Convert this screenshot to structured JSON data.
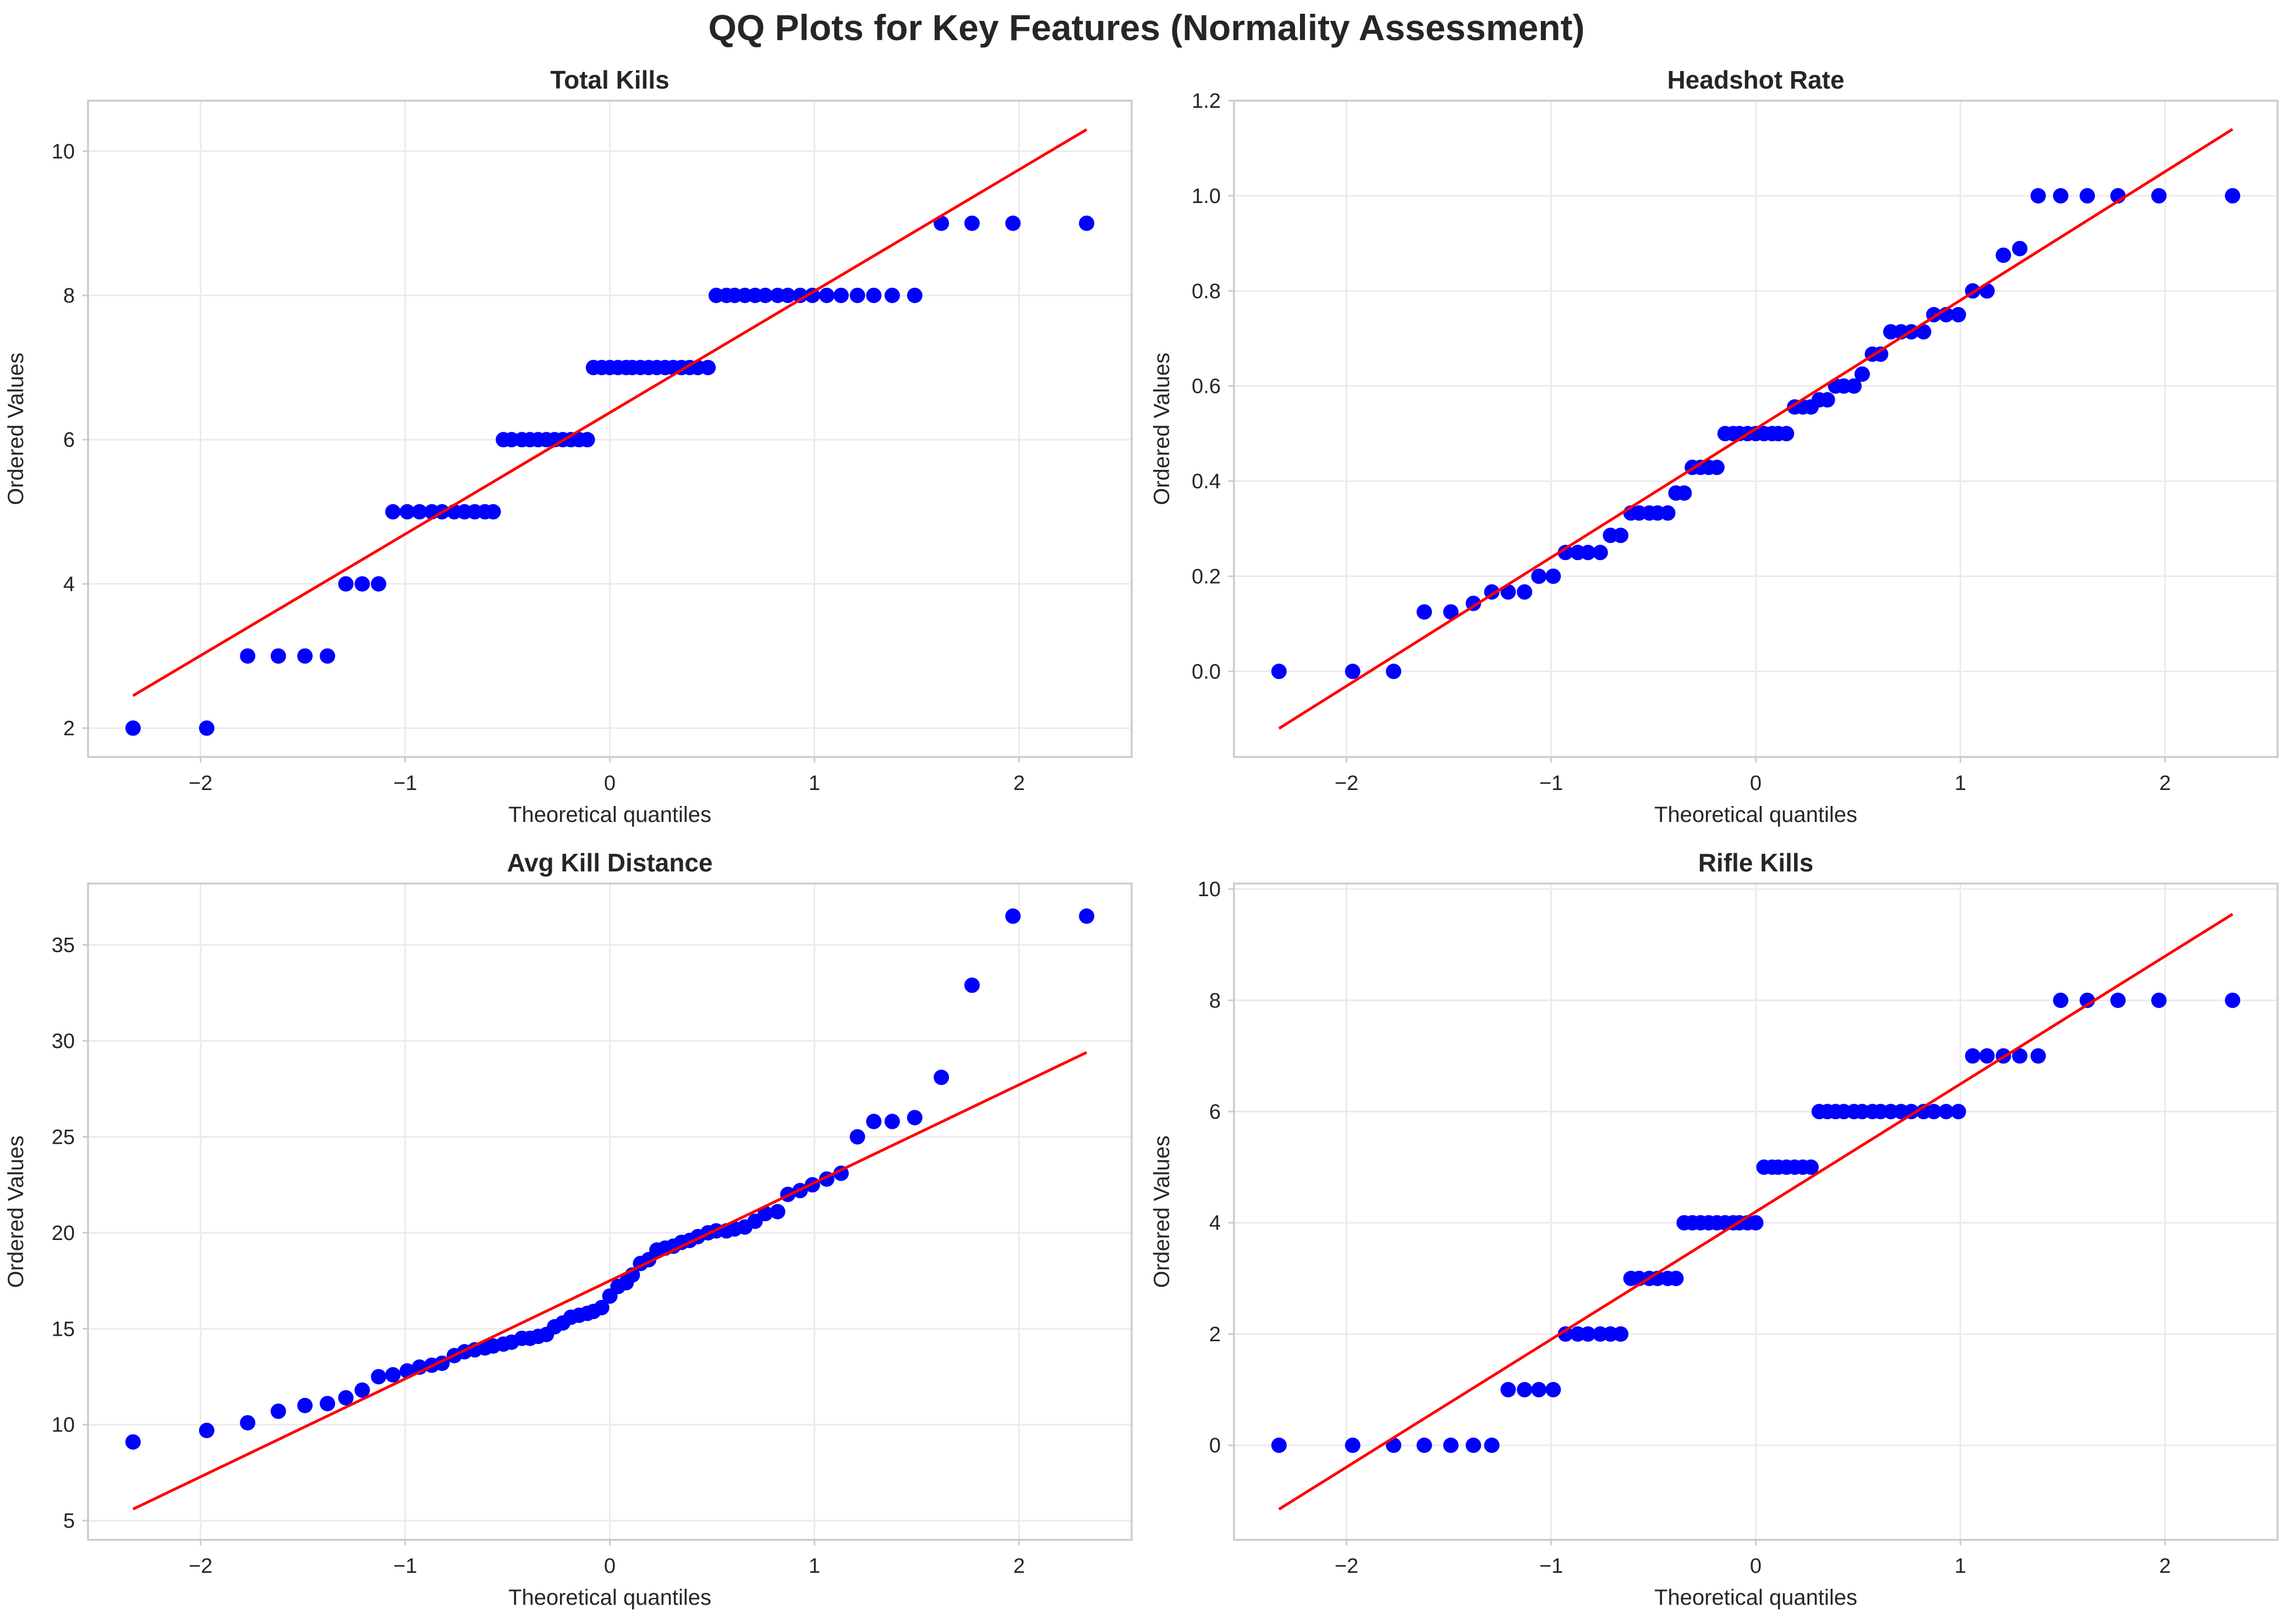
{
  "figure": {
    "suptitle": "QQ Plots for Key Features (Normality Assessment)"
  },
  "chart_data": [
    {
      "type": "scatter",
      "title": "Total Kills",
      "xlabel": "Theoretical quantiles",
      "ylabel": "Ordered Values",
      "xlim": [
        -2.55,
        2.55
      ],
      "ylim": [
        1.6,
        10.7
      ],
      "xticks": [
        -2,
        -1,
        0,
        1,
        2
      ],
      "yticks": [
        2,
        4,
        6,
        8,
        10
      ],
      "grid": true,
      "fit_line": {
        "x": [
          -2.33,
          2.33
        ],
        "y": [
          2.45,
          10.3
        ]
      },
      "x": [
        -2.33,
        -1.97,
        -1.77,
        -1.62,
        -1.49,
        -1.38,
        -1.29,
        -1.21,
        -1.13,
        -1.06,
        -0.99,
        -0.93,
        -0.87,
        -0.82,
        -0.76,
        -0.71,
        -0.66,
        -0.61,
        -0.57,
        -0.52,
        -0.48,
        -0.43,
        -0.39,
        -0.35,
        -0.31,
        -0.27,
        -0.23,
        -0.19,
        -0.15,
        -0.11,
        -0.08,
        -0.04,
        0.0,
        0.04,
        0.08,
        0.11,
        0.15,
        0.19,
        0.23,
        0.27,
        0.31,
        0.35,
        0.39,
        0.43,
        0.48,
        0.52,
        0.57,
        0.61,
        0.66,
        0.71,
        0.76,
        0.82,
        0.87,
        0.93,
        0.99,
        1.06,
        1.13,
        1.21,
        1.29,
        1.38,
        1.49,
        1.62,
        1.77,
        1.97,
        2.33
      ],
      "y": [
        2,
        2,
        3,
        3,
        3,
        3,
        4,
        4,
        4,
        5,
        5,
        5,
        5,
        5,
        5,
        5,
        5,
        5,
        5,
        6,
        6,
        6,
        6,
        6,
        6,
        6,
        6,
        6,
        6,
        6,
        7,
        7,
        7,
        7,
        7,
        7,
        7,
        7,
        7,
        7,
        7,
        7,
        7,
        7,
        7,
        8,
        8,
        8,
        8,
        8,
        8,
        8,
        8,
        8,
        8,
        8,
        8,
        8,
        8,
        8,
        8,
        9,
        9,
        9,
        9
      ]
    },
    {
      "type": "scatter",
      "title": "Headshot Rate",
      "xlabel": "Theoretical quantiles",
      "ylabel": "Ordered Values",
      "xlim": [
        -2.55,
        2.55
      ],
      "ylim": [
        -0.18,
        1.2
      ],
      "xticks": [
        -2,
        -1,
        0,
        1,
        2
      ],
      "yticks": [
        0.0,
        0.2,
        0.4,
        0.6,
        0.8,
        1.0,
        1.2
      ],
      "grid": true,
      "fit_line": {
        "x": [
          -2.33,
          2.33
        ],
        "y": [
          -0.12,
          1.14
        ]
      },
      "x": [
        -2.33,
        -1.97,
        -1.77,
        -1.62,
        -1.49,
        -1.38,
        -1.29,
        -1.21,
        -1.13,
        -1.06,
        -0.99,
        -0.93,
        -0.87,
        -0.82,
        -0.76,
        -0.71,
        -0.66,
        -0.61,
        -0.57,
        -0.52,
        -0.48,
        -0.43,
        -0.39,
        -0.35,
        -0.31,
        -0.27,
        -0.23,
        -0.19,
        -0.15,
        -0.11,
        -0.08,
        -0.04,
        0.0,
        0.04,
        0.08,
        0.11,
        0.15,
        0.19,
        0.23,
        0.27,
        0.31,
        0.35,
        0.39,
        0.43,
        0.48,
        0.52,
        0.57,
        0.61,
        0.66,
        0.71,
        0.76,
        0.82,
        0.87,
        0.93,
        0.99,
        1.06,
        1.13,
        1.21,
        1.29,
        1.38,
        1.49,
        1.62,
        1.77,
        1.97,
        2.33
      ],
      "y": [
        0.0,
        0.0,
        0.0,
        0.125,
        0.125,
        0.143,
        0.167,
        0.167,
        0.167,
        0.2,
        0.2,
        0.25,
        0.25,
        0.25,
        0.25,
        0.286,
        0.286,
        0.333,
        0.333,
        0.333,
        0.333,
        0.333,
        0.375,
        0.375,
        0.429,
        0.429,
        0.429,
        0.429,
        0.5,
        0.5,
        0.5,
        0.5,
        0.5,
        0.5,
        0.5,
        0.5,
        0.5,
        0.556,
        0.556,
        0.556,
        0.571,
        0.571,
        0.6,
        0.6,
        0.6,
        0.625,
        0.667,
        0.667,
        0.714,
        0.714,
        0.714,
        0.714,
        0.75,
        0.75,
        0.75,
        0.8,
        0.8,
        0.875,
        0.889,
        1.0,
        1.0,
        1.0,
        1.0,
        1.0,
        1.0
      ]
    },
    {
      "type": "scatter",
      "title": "Avg Kill Distance",
      "xlabel": "Theoretical quantiles",
      "ylabel": "Ordered Values",
      "xlim": [
        -2.55,
        2.55
      ],
      "ylim": [
        4.0,
        38.2
      ],
      "xticks": [
        -2,
        -1,
        0,
        1,
        2
      ],
      "yticks": [
        5,
        10,
        15,
        20,
        25,
        30,
        35
      ],
      "grid": true,
      "fit_line": {
        "x": [
          -2.33,
          2.33
        ],
        "y": [
          5.6,
          29.4
        ]
      },
      "x": [
        -2.33,
        -1.97,
        -1.77,
        -1.62,
        -1.49,
        -1.38,
        -1.29,
        -1.21,
        -1.13,
        -1.06,
        -0.99,
        -0.93,
        -0.87,
        -0.82,
        -0.76,
        -0.71,
        -0.66,
        -0.61,
        -0.57,
        -0.52,
        -0.48,
        -0.43,
        -0.39,
        -0.35,
        -0.31,
        -0.27,
        -0.23,
        -0.19,
        -0.15,
        -0.11,
        -0.08,
        -0.04,
        0.0,
        0.04,
        0.08,
        0.11,
        0.15,
        0.19,
        0.23,
        0.27,
        0.31,
        0.35,
        0.39,
        0.43,
        0.48,
        0.52,
        0.57,
        0.61,
        0.66,
        0.71,
        0.76,
        0.82,
        0.87,
        0.93,
        0.99,
        1.06,
        1.13,
        1.21,
        1.29,
        1.38,
        1.49,
        1.62,
        1.77,
        1.97,
        2.33
      ],
      "y": [
        9.1,
        9.7,
        10.1,
        10.7,
        11.0,
        11.1,
        11.4,
        11.8,
        12.5,
        12.6,
        12.8,
        13.0,
        13.1,
        13.2,
        13.6,
        13.8,
        13.9,
        14.0,
        14.1,
        14.2,
        14.3,
        14.5,
        14.5,
        14.6,
        14.7,
        15.1,
        15.3,
        15.6,
        15.7,
        15.8,
        15.9,
        16.1,
        16.7,
        17.2,
        17.4,
        17.8,
        18.4,
        18.6,
        19.1,
        19.2,
        19.3,
        19.5,
        19.6,
        19.8,
        20.0,
        20.1,
        20.1,
        20.2,
        20.3,
        20.6,
        21.0,
        21.1,
        22.0,
        22.2,
        22.5,
        22.8,
        23.1,
        25.0,
        25.8,
        25.8,
        26.0,
        28.1,
        32.9,
        36.5,
        36.5
      ]
    },
    {
      "type": "scatter",
      "title": "Rifle Kills",
      "xlabel": "Theoretical quantiles",
      "ylabel": "Ordered Values",
      "xlim": [
        -2.55,
        2.55
      ],
      "ylim": [
        -1.7,
        10.1
      ],
      "xticks": [
        -2,
        -1,
        0,
        1,
        2
      ],
      "yticks": [
        0,
        2,
        4,
        6,
        8,
        10
      ],
      "grid": true,
      "fit_line": {
        "x": [
          -2.33,
          2.33
        ],
        "y": [
          -1.15,
          9.55
        ]
      },
      "x": [
        -2.33,
        -1.97,
        -1.77,
        -1.62,
        -1.49,
        -1.38,
        -1.29,
        -1.21,
        -1.13,
        -1.06,
        -0.99,
        -0.93,
        -0.87,
        -0.82,
        -0.76,
        -0.71,
        -0.66,
        -0.61,
        -0.57,
        -0.52,
        -0.48,
        -0.43,
        -0.39,
        -0.35,
        -0.31,
        -0.27,
        -0.23,
        -0.19,
        -0.15,
        -0.11,
        -0.08,
        -0.04,
        0.0,
        0.04,
        0.08,
        0.11,
        0.15,
        0.19,
        0.23,
        0.27,
        0.31,
        0.35,
        0.39,
        0.43,
        0.48,
        0.52,
        0.57,
        0.61,
        0.66,
        0.71,
        0.76,
        0.82,
        0.87,
        0.93,
        0.99,
        1.06,
        1.13,
        1.21,
        1.29,
        1.38,
        1.49,
        1.62,
        1.77,
        1.97,
        2.33
      ],
      "y": [
        0,
        0,
        0,
        0,
        0,
        0,
        0,
        1,
        1,
        1,
        1,
        2,
        2,
        2,
        2,
        2,
        2,
        3,
        3,
        3,
        3,
        3,
        3,
        4,
        4,
        4,
        4,
        4,
        4,
        4,
        4,
        4,
        4,
        5,
        5,
        5,
        5,
        5,
        5,
        5,
        6,
        6,
        6,
        6,
        6,
        6,
        6,
        6,
        6,
        6,
        6,
        6,
        6,
        6,
        6,
        7,
        7,
        7,
        7,
        7,
        8,
        8,
        8,
        8,
        8
      ]
    }
  ]
}
